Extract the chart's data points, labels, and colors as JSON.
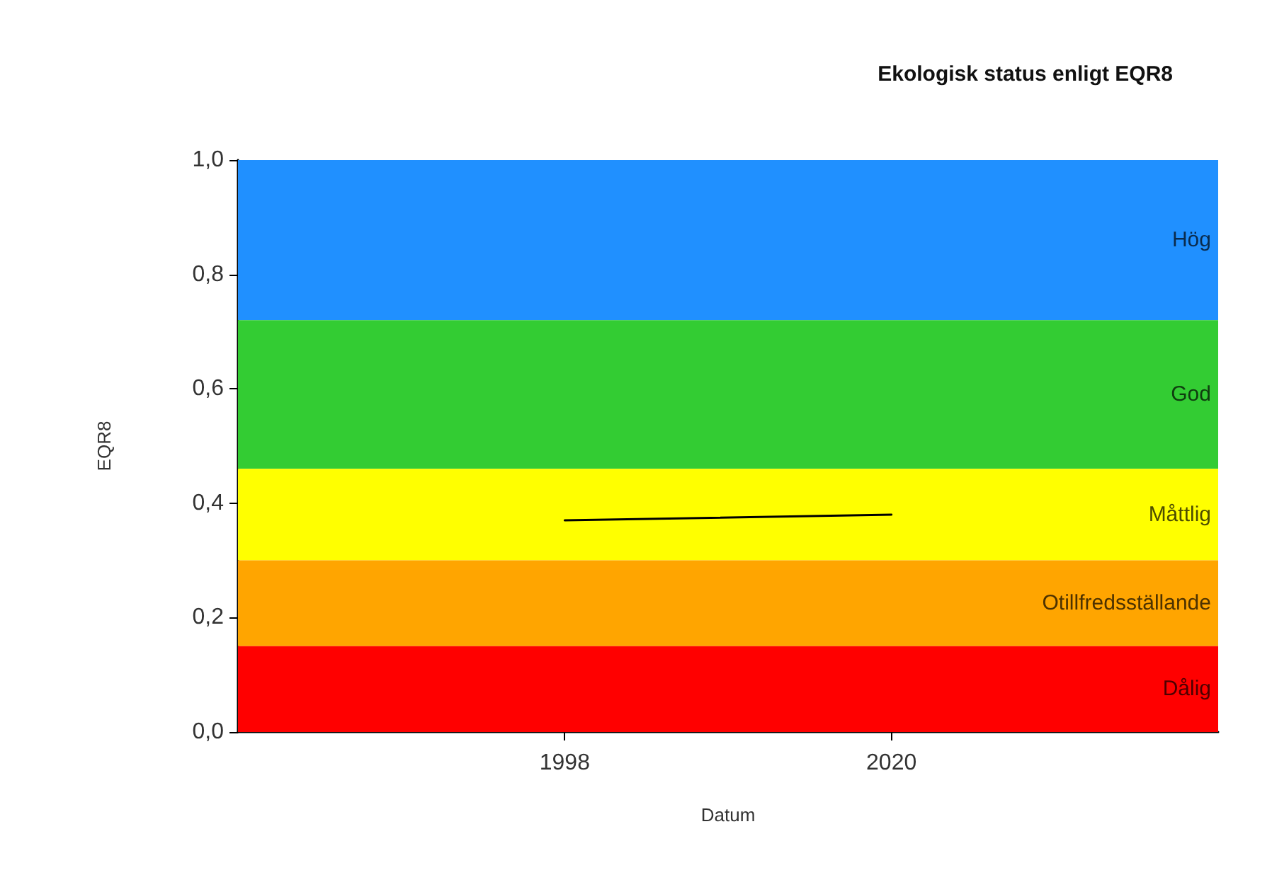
{
  "chart_data": {
    "type": "line",
    "title": "Ekologisk status enligt EQR8",
    "xlabel": "Datum",
    "ylabel": "EQR8",
    "x": [
      1998,
      2020
    ],
    "series": [
      {
        "color": "#000000",
        "values": [
          0.37,
          0.38
        ]
      }
    ],
    "xlim": [
      1976,
      2042
    ],
    "xticks": [
      1998,
      2020
    ],
    "ylim": [
      0,
      1
    ],
    "yticks": [
      {
        "value": 0,
        "label": "0,0"
      },
      {
        "value": 0.2,
        "label": "0,2"
      },
      {
        "value": 0.4,
        "label": "0,4"
      },
      {
        "value": 0.6,
        "label": "0,6"
      },
      {
        "value": 0.8,
        "label": "0,8"
      },
      {
        "value": 1,
        "label": "1,0"
      }
    ],
    "bands": [
      {
        "axis": "y",
        "from": 0.72,
        "to": 1,
        "label": "Hög",
        "color": "#2090ff"
      },
      {
        "axis": "y",
        "from": 0.46,
        "to": 0.72,
        "label": "God",
        "color": "#33cc33"
      },
      {
        "axis": "y",
        "from": 0.3,
        "to": 0.46,
        "label": "Måttlig",
        "color": "#ffff00"
      },
      {
        "axis": "y",
        "from": 0.15,
        "to": 0.3,
        "label": "Otillfredsställande",
        "color": "#ffa500"
      },
      {
        "axis": "y",
        "from": 0,
        "to": 0.15,
        "label": "Dålig",
        "color": "#ff0000"
      }
    ],
    "grid": false,
    "marker": "none",
    "line_style": "solid"
  }
}
